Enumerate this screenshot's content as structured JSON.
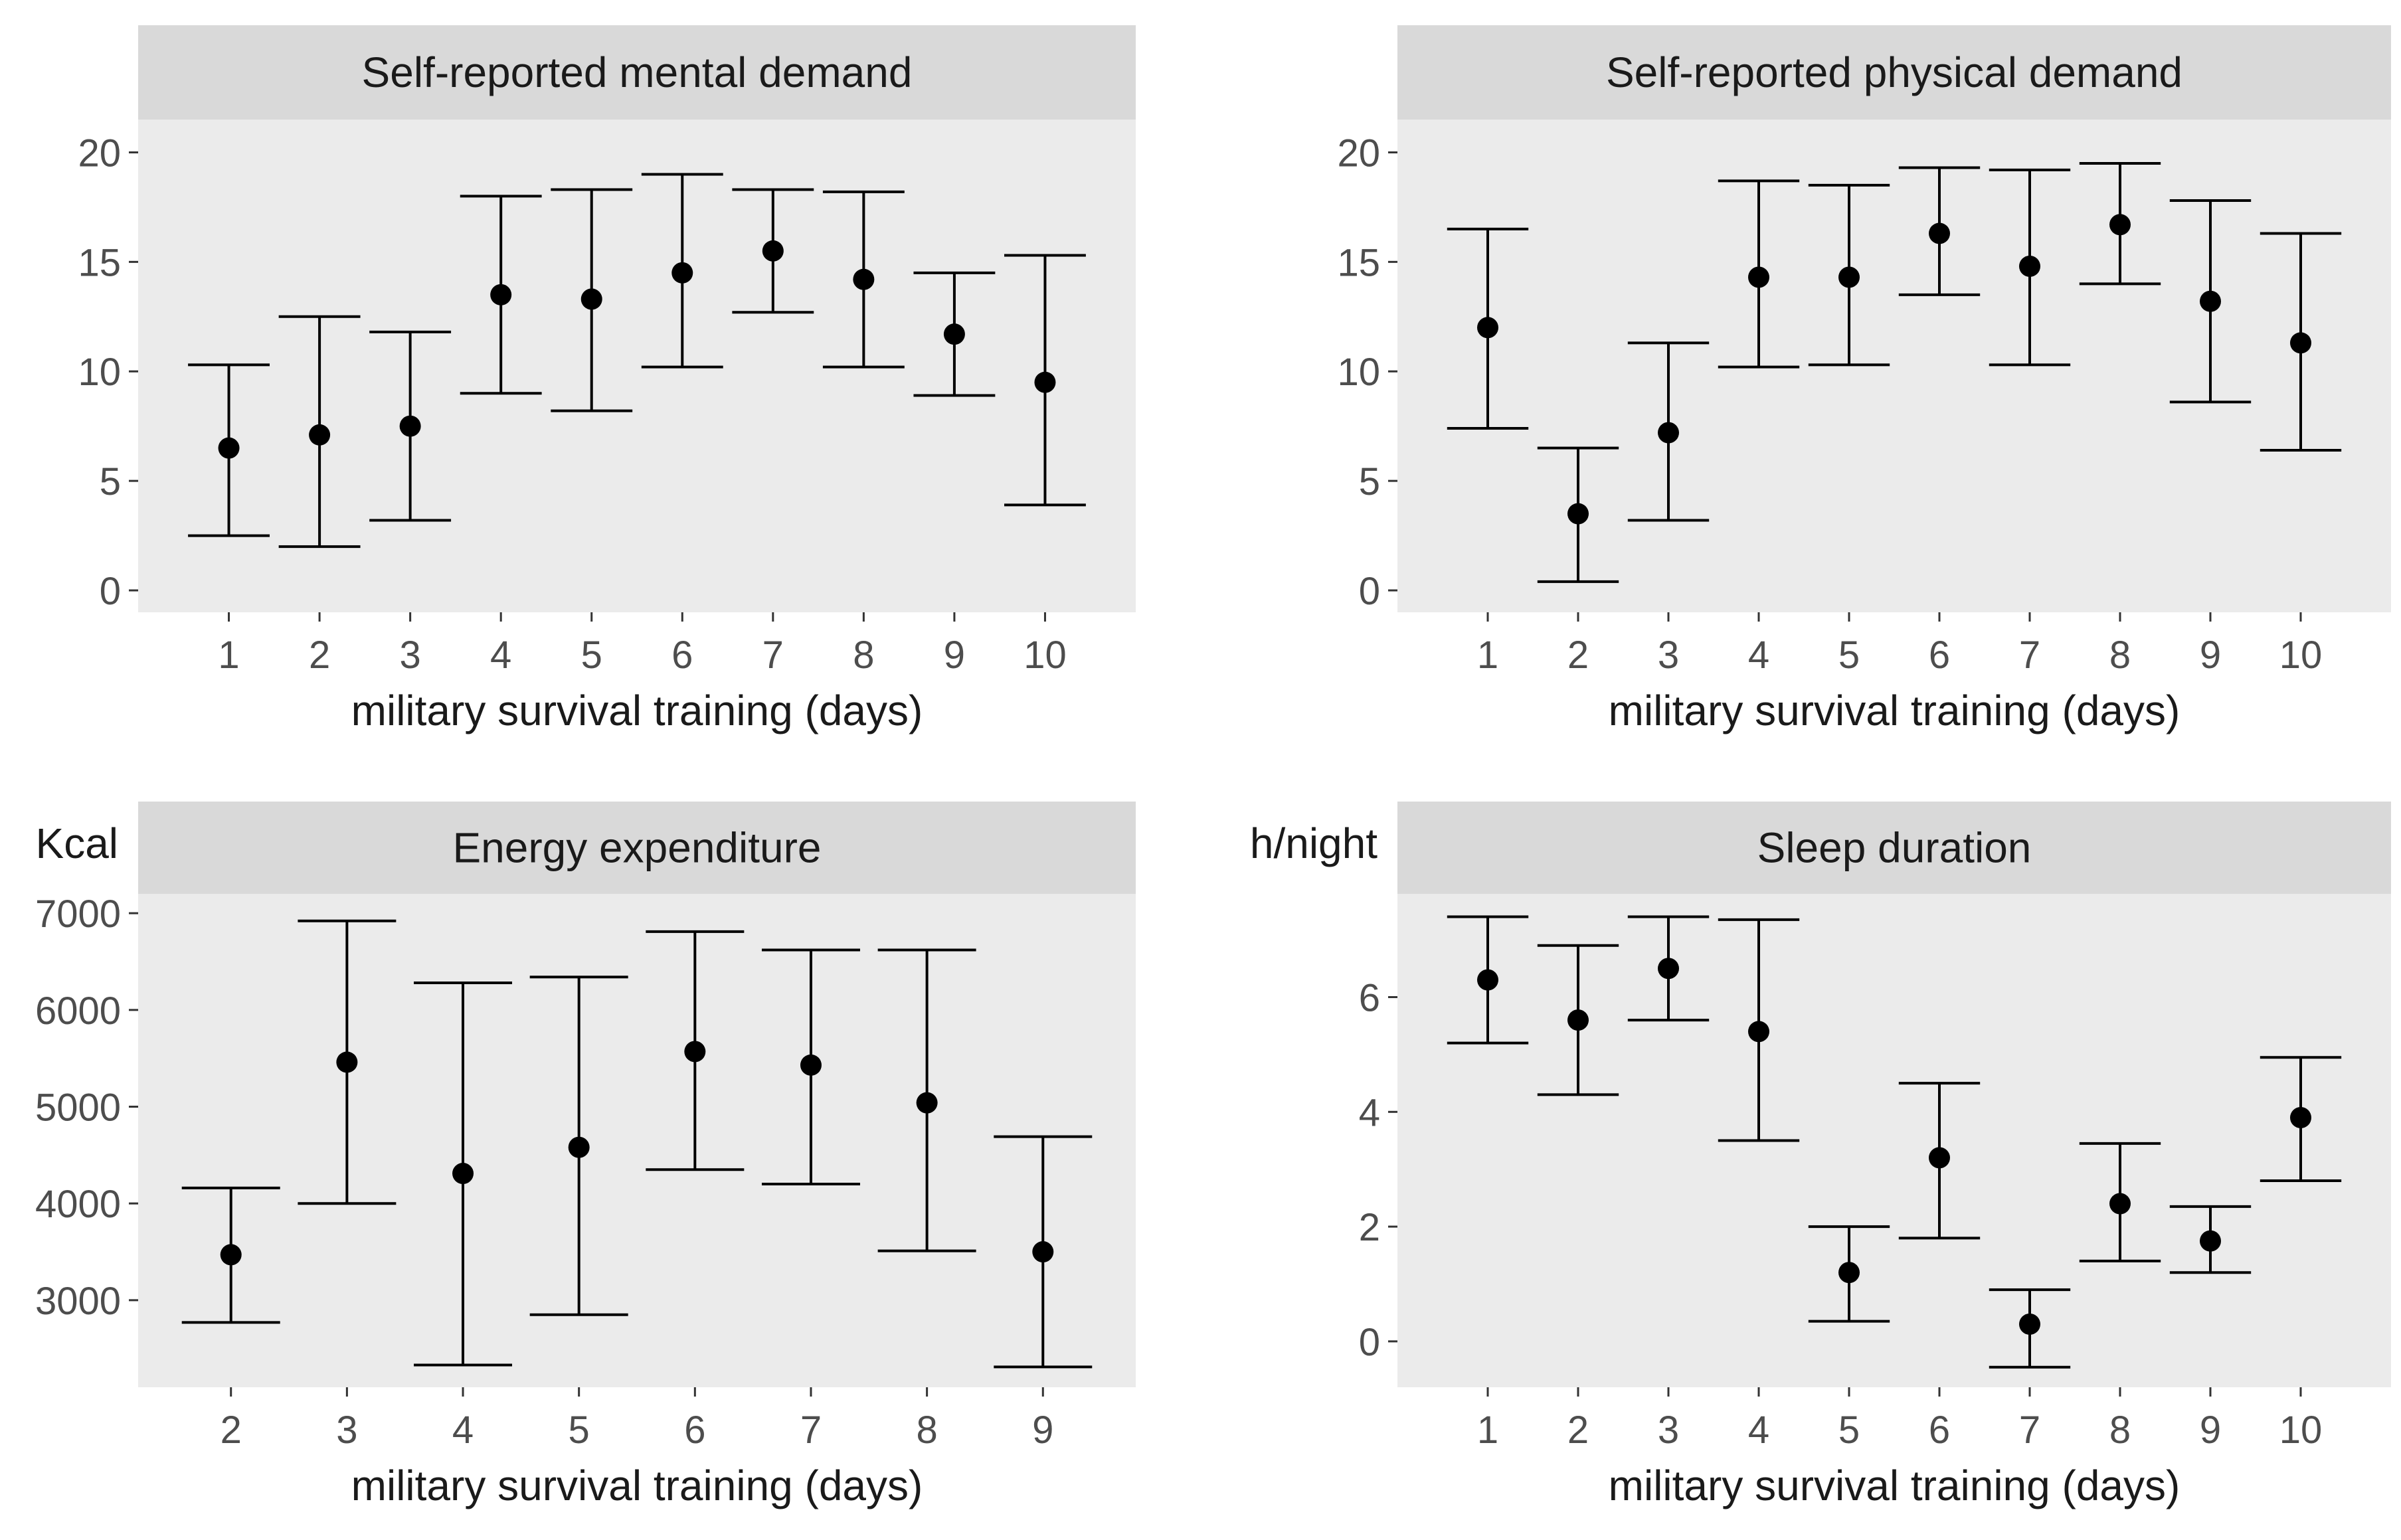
{
  "chart_data": [
    {
      "type": "scatter",
      "title": "Self-reported mental demand",
      "xlabel": "military survival training (days)",
      "ylabel": "",
      "unit": "",
      "x": [
        1,
        2,
        3,
        4,
        5,
        6,
        7,
        8,
        9,
        10
      ],
      "y": [
        6.5,
        7.1,
        7.5,
        13.5,
        13.3,
        14.5,
        15.5,
        14.2,
        11.7,
        9.5
      ],
      "ymin": [
        2.5,
        2.0,
        3.2,
        9.0,
        8.2,
        10.2,
        12.7,
        10.2,
        8.9,
        3.9
      ],
      "ymax": [
        10.3,
        12.5,
        11.8,
        18.0,
        18.3,
        19.0,
        18.3,
        18.2,
        14.5,
        15.3
      ],
      "xlim": [
        0,
        11
      ],
      "ylim": [
        -1,
        21.5
      ],
      "yticks": [
        0,
        5,
        10,
        15,
        20
      ],
      "xticks": [
        "1",
        "2",
        "3",
        "4",
        "5",
        "6",
        "7",
        "8",
        "9",
        "10"
      ],
      "grid": false
    },
    {
      "type": "scatter",
      "title": "Self-reported physical demand",
      "xlabel": "military survival training (days)",
      "ylabel": "",
      "unit": "",
      "x": [
        1,
        2,
        3,
        4,
        5,
        6,
        7,
        8,
        9,
        10
      ],
      "y": [
        12.0,
        3.5,
        7.2,
        14.3,
        14.3,
        16.3,
        14.8,
        16.7,
        13.2,
        11.3
      ],
      "ymin": [
        7.4,
        0.4,
        3.2,
        10.2,
        10.3,
        13.5,
        10.3,
        14.0,
        8.6,
        6.4
      ],
      "ymax": [
        16.5,
        6.5,
        11.3,
        18.7,
        18.5,
        19.3,
        19.2,
        19.5,
        17.8,
        16.3
      ],
      "xlim": [
        0,
        11
      ],
      "ylim": [
        -1,
        21.5
      ],
      "yticks": [
        0,
        5,
        10,
        15,
        20
      ],
      "xticks": [
        "1",
        "2",
        "3",
        "4",
        "5",
        "6",
        "7",
        "8",
        "9",
        "10"
      ],
      "grid": false
    },
    {
      "type": "scatter",
      "title": "Energy expenditure",
      "xlabel": "military survival training (days)",
      "ylabel": "",
      "unit": "Kcal",
      "x": [
        2,
        3,
        4,
        5,
        6,
        7,
        8,
        9
      ],
      "y": [
        3470,
        5460,
        4310,
        4580,
        5570,
        5430,
        5040,
        3500
      ],
      "ymin": [
        2770,
        4000,
        2330,
        2850,
        4350,
        4200,
        3510,
        2310
      ],
      "ymax": [
        4160,
        6920,
        6280,
        6340,
        6810,
        6620,
        6620,
        4690
      ],
      "xlim": [
        1.2,
        9.8
      ],
      "ylim": [
        2100,
        7200
      ],
      "yticks": [
        3000,
        4000,
        5000,
        6000,
        7000
      ],
      "xticks": [
        "2",
        "3",
        "4",
        "5",
        "6",
        "7",
        "8",
        "9"
      ],
      "grid": false
    },
    {
      "type": "scatter",
      "title": "Sleep duration",
      "xlabel": "military survival training (days)",
      "ylabel": "",
      "unit": "h/night",
      "x": [
        1,
        2,
        3,
        4,
        5,
        6,
        7,
        8,
        9,
        10
      ],
      "y": [
        6.3,
        5.6,
        6.5,
        5.4,
        1.2,
        3.2,
        0.3,
        2.4,
        1.75,
        3.9
      ],
      "ymin": [
        5.2,
        4.3,
        5.6,
        3.5,
        0.35,
        1.8,
        -0.45,
        1.4,
        1.2,
        2.8
      ],
      "ymax": [
        7.4,
        6.9,
        7.4,
        7.35,
        2.0,
        4.5,
        0.9,
        3.45,
        2.35,
        4.95
      ],
      "xlim": [
        0,
        11
      ],
      "ylim": [
        -0.8,
        7.8
      ],
      "yticks": [
        0,
        2,
        4,
        6
      ],
      "xticks": [
        "1",
        "2",
        "3",
        "4",
        "5",
        "6",
        "7",
        "8",
        "9",
        "10"
      ],
      "grid": false
    }
  ],
  "colors": {
    "panel_background": "#ebebeb",
    "strip_background": "#d9d9d9",
    "marks": "#000000",
    "tick_label": "#4d4d4d",
    "text": "#1a1a1a"
  }
}
